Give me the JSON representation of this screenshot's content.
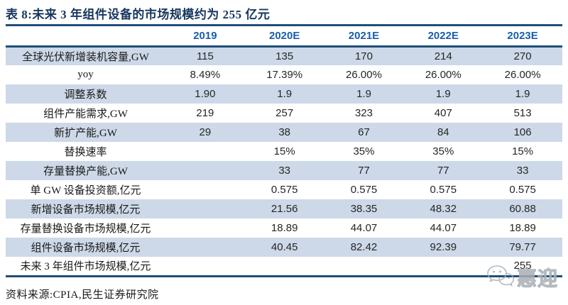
{
  "title": "表 8:未来 3 年组件设备的市场规模约为 255 亿元",
  "table": {
    "columns": [
      "",
      "2019",
      "2020E",
      "2021E",
      "2022E",
      "2023E"
    ],
    "rows": [
      {
        "label": "全球光伏新增装机容量,GW",
        "values": [
          "115",
          "135",
          "170",
          "214",
          "270"
        ]
      },
      {
        "label": "yoy",
        "values": [
          "8.49%",
          "17.39%",
          "26.00%",
          "26.00%",
          "26.00%"
        ]
      },
      {
        "label": "调整系数",
        "values": [
          "1.90",
          "1.9",
          "1.9",
          "1.9",
          "1.9"
        ]
      },
      {
        "label": "组件产能需求,GW",
        "values": [
          "219",
          "257",
          "323",
          "407",
          "513"
        ]
      },
      {
        "label": "新扩产能,GW",
        "values": [
          "29",
          "38",
          "67",
          "84",
          "106"
        ]
      },
      {
        "label": "替换速率",
        "values": [
          "",
          "15%",
          "35%",
          "35%",
          "15%"
        ]
      },
      {
        "label": "存量替换产能,GW",
        "values": [
          "",
          "33",
          "77",
          "77",
          "33"
        ]
      },
      {
        "label": "单 GW 设备投资额,亿元",
        "values": [
          "",
          "0.575",
          "0.575",
          "0.575",
          "0.575"
        ]
      },
      {
        "label": "新增设备市场规模,亿元",
        "values": [
          "",
          "21.56",
          "38.35",
          "48.32",
          "60.88"
        ]
      },
      {
        "label": "存量替换设备市场规模,亿元",
        "values": [
          "",
          "18.89",
          "44.07",
          "44.07",
          "18.89"
        ]
      },
      {
        "label": "组件设备市场规模,亿元",
        "values": [
          "",
          "40.45",
          "82.42",
          "92.39",
          "79.77"
        ]
      },
      {
        "label": "未来 3 年组件市场规模,亿元",
        "values": [
          "",
          "",
          "",
          "",
          "255"
        ]
      }
    ]
  },
  "source": {
    "text": "资料来源:CPIA,民生证券研究院"
  },
  "watermark": {
    "text": "惠迎",
    "icon": "wechat-icon"
  },
  "colors": {
    "title_navy": "#17375e",
    "rule_navy": "#1f4e79",
    "header_blue": "#1b5eab",
    "row_shade": "#cdd9e8",
    "body_text": "#262626",
    "watermark_gray": "#a9aeb5"
  }
}
